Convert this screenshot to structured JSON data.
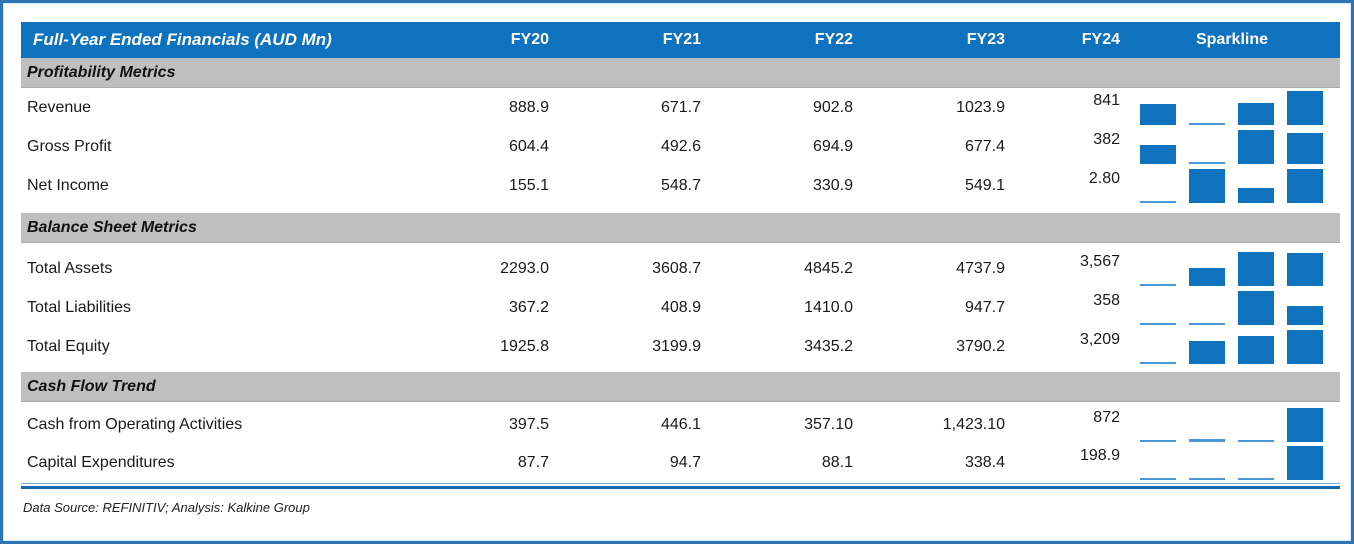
{
  "chart_data": {
    "type": "table",
    "title": "Full-Year Ended Financials (AUD Mn)",
    "columns": [
      "FY20",
      "FY21",
      "FY22",
      "FY23",
      "FY24"
    ],
    "sparkline_label": "Sparkline",
    "sparkline_note": "Each row has a 4-bar column sparkline depicting the FY20-FY23 values, scaled so the row minimum is a sliver and the row maximum is full height",
    "sections": [
      {
        "header": "Profitability Metrics",
        "rows": [
          {
            "label": "Revenue",
            "values": [
              "888.9",
              "671.7",
              "902.8",
              "1023.9",
              "841"
            ],
            "spark": [
              888.9,
              671.7,
              902.8,
              1023.9
            ]
          },
          {
            "label": "Gross Profit",
            "values": [
              "604.4",
              "492.6",
              "694.9",
              "677.4",
              "382"
            ],
            "spark": [
              604.4,
              492.6,
              694.9,
              677.4
            ]
          },
          {
            "label": "Net Income",
            "values": [
              "155.1",
              "548.7",
              "330.9",
              "549.1",
              "2.80"
            ],
            "spark": [
              155.1,
              548.7,
              330.9,
              549.1
            ]
          }
        ]
      },
      {
        "header": "Balance Sheet Metrics",
        "rows": [
          {
            "label": "Total Assets",
            "values": [
              "2293.0",
              "3608.7",
              "4845.2",
              "4737.9",
              "3,567"
            ],
            "spark": [
              2293.0,
              3608.7,
              4845.2,
              4737.9
            ]
          },
          {
            "label": "Total Liabilities",
            "values": [
              "367.2",
              "408.9",
              "1410.0",
              "947.7",
              "358"
            ],
            "spark": [
              367.2,
              408.9,
              1410.0,
              947.7
            ]
          },
          {
            "label": "Total Equity",
            "values": [
              "1925.8",
              "3199.9",
              "3435.2",
              "3790.2",
              "3,209"
            ],
            "spark": [
              1925.8,
              3199.9,
              3435.2,
              3790.2
            ]
          }
        ]
      },
      {
        "header": "Cash Flow Trend",
        "rows": [
          {
            "label": "Cash from Operating Activities",
            "values": [
              "397.5",
              "446.1",
              "357.10",
              "1,423.10",
              "872"
            ],
            "spark": [
              397.5,
              446.1,
              357.1,
              1423.1
            ]
          },
          {
            "label": "Capital Expenditures",
            "values": [
              "87.7",
              "94.7",
              "88.1",
              "338.4",
              "198.9"
            ],
            "spark": [
              87.7,
              94.7,
              88.1,
              338.4
            ]
          }
        ]
      }
    ],
    "footnote": "Data Source: REFINITIV; Analysis: Kalkine Group"
  },
  "colors": {
    "header_bg": "#0E72BE",
    "header_text": "#FFFFFF",
    "section_band_bg": "#BFBFBF",
    "spark_bar": "#0E72BE",
    "spark_sliver": "#4C97D9",
    "frame_border": "#2E75B6",
    "bottom_rule": "#1269B0"
  }
}
